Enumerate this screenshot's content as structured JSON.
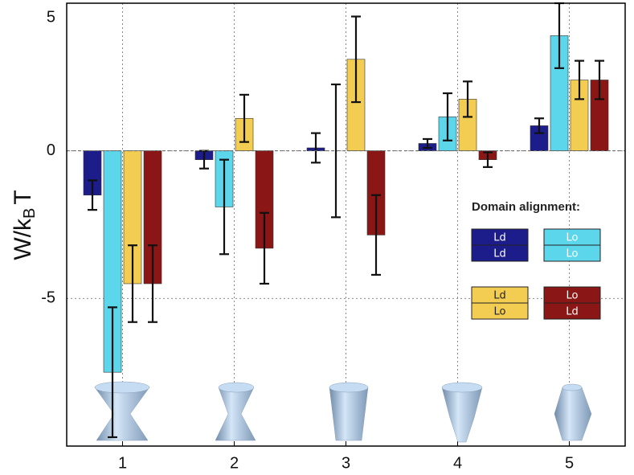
{
  "chart_data": {
    "type": "bar",
    "categories": [
      "1",
      "2",
      "3",
      "4",
      "5"
    ],
    "ylabel": [
      "W/k",
      "B",
      "T"
    ],
    "ylim": [
      -10,
      5
    ],
    "yticks": [
      -5,
      0,
      5
    ],
    "grid": true,
    "legend_title": "Domain alignment:",
    "series": [
      {
        "legend_labels": [
          "Ld",
          "Ld"
        ],
        "color": "#1c1c8a",
        "values": [
          -1.5,
          -0.3,
          0.1,
          0.25,
          0.85
        ],
        "errors": [
          0.5,
          0.3,
          0.5,
          0.15,
          0.25
        ]
      },
      {
        "legend_labels": [
          "Lo",
          "Lo"
        ],
        "color": "#5cd6ea",
        "values": [
          -7.5,
          -1.9,
          0,
          1.15,
          3.9
        ],
        "errors": [
          2.2,
          1.6,
          2.25,
          0.8,
          1.1
        ]
      },
      {
        "legend_labels": [
          "Ld",
          "Lo"
        ],
        "color": "#f2cd52",
        "values": [
          -4.5,
          1.1,
          3.1,
          1.75,
          2.4
        ],
        "errors": [
          1.3,
          0.8,
          1.45,
          0.6,
          0.65
        ]
      },
      {
        "legend_labels": [
          "Lo",
          "Ld"
        ],
        "color": "#8a1616",
        "values": [
          -4.5,
          -3.3,
          -2.85,
          -0.3,
          2.4
        ],
        "errors": [
          1.3,
          1.2,
          1.35,
          0.25,
          0.65
        ]
      }
    ]
  }
}
